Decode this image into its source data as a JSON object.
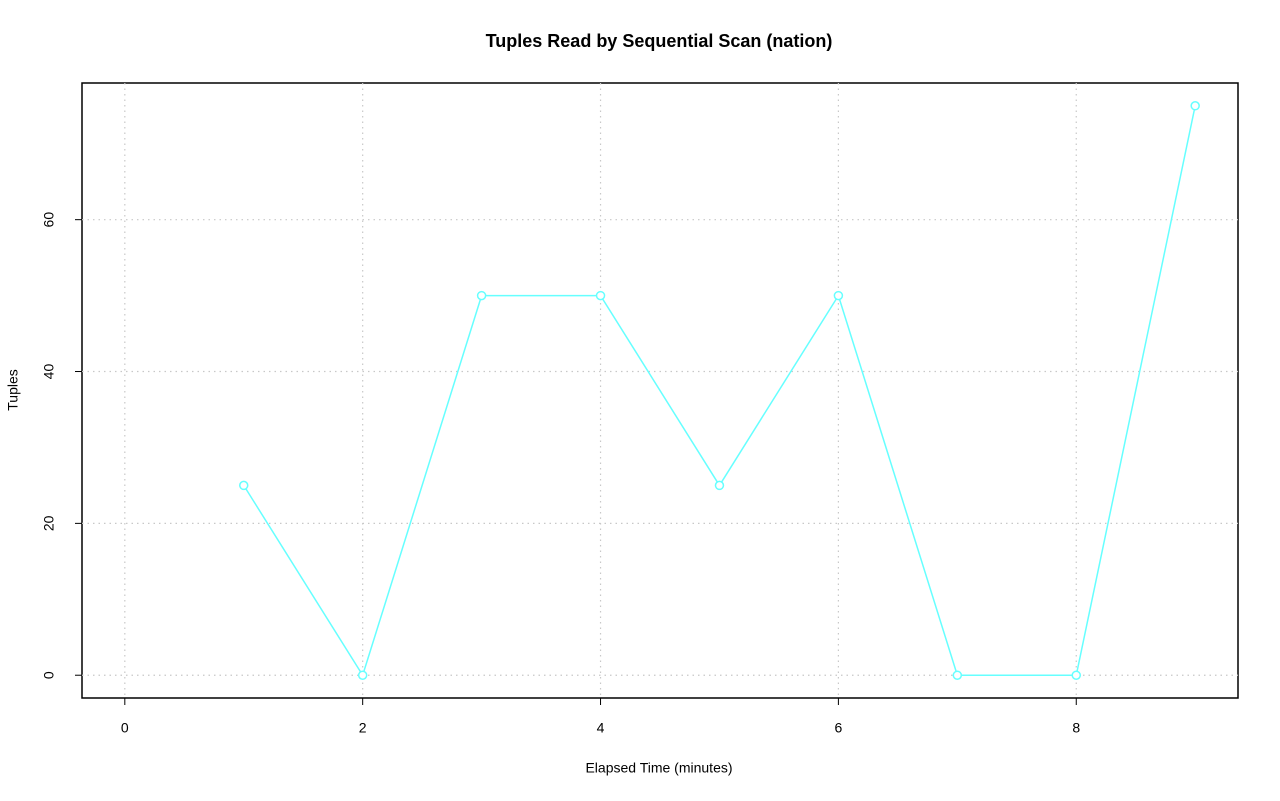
{
  "chart_data": {
    "type": "line",
    "title": "Tuples Read by Sequential Scan (nation)",
    "x_label": "Elapsed Time (minutes)",
    "y_label": "Tuples",
    "x": [
      1,
      2,
      3,
      4,
      5,
      6,
      7,
      8,
      9
    ],
    "series": [
      {
        "name": "Tuples",
        "color": "#66ffff",
        "values": [
          25,
          0,
          50,
          50,
          25,
          50,
          0,
          0,
          75
        ]
      }
    ],
    "xlim": [
      -0.36,
      9.36
    ],
    "xticks": [
      0,
      2,
      4,
      6,
      8
    ],
    "ylim": [
      -3,
      78
    ],
    "yticks": [
      0,
      20,
      40,
      60
    ],
    "grid": true,
    "markers": true
  }
}
